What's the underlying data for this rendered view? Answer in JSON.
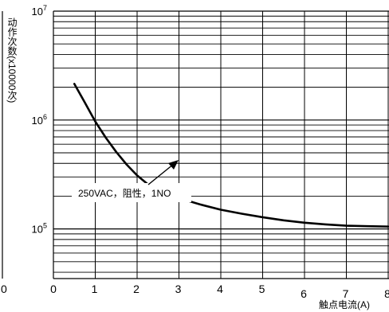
{
  "chart_data": {
    "type": "line",
    "title": "",
    "ylabel": "动作次数(x10000次)",
    "xlabel": "触点电流(A)",
    "xlim": [
      0,
      8
    ],
    "y_scale": "log",
    "ylim": [
      35000,
      10000000
    ],
    "x_ticks": [
      "0",
      "1",
      "2",
      "3",
      "4",
      "5",
      "6",
      "7",
      "8"
    ],
    "y_ticks": [
      {
        "value": 10000000,
        "base": "10",
        "exp": "7"
      },
      {
        "value": 1000000,
        "base": "10",
        "exp": "6"
      },
      {
        "value": 100000,
        "base": "10",
        "exp": "5"
      }
    ],
    "grid": true,
    "annotation": "250VAC，阻性，1NO",
    "series": [
      {
        "x": [
          0.5,
          0.75,
          1.0,
          1.25,
          1.5,
          1.75,
          2.0,
          2.25,
          2.5,
          2.75,
          3.0,
          3.5,
          4.0,
          4.5,
          5.0,
          5.5,
          6.0,
          6.5,
          7.0,
          7.5,
          8.0
        ],
        "y": [
          2150000,
          1450000,
          970000,
          690000,
          510000,
          390000,
          310000,
          258000,
          228000,
          207000,
          192000,
          168000,
          150000,
          138000,
          128000,
          120000,
          114000,
          110000,
          107000,
          106000,
          105000
        ]
      }
    ]
  },
  "left_axis_value": "0"
}
